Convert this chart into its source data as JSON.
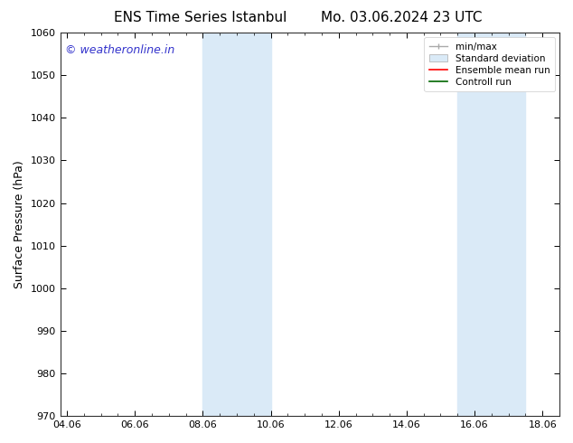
{
  "title_left": "ENS Time Series Istanbul",
  "title_right": "Mo. 03.06.2024 23 UTC",
  "ylabel": "Surface Pressure (hPa)",
  "ylim": [
    970,
    1060
  ],
  "yticks": [
    970,
    980,
    990,
    1000,
    1010,
    1020,
    1030,
    1040,
    1050,
    1060
  ],
  "xtick_labels": [
    "04.06",
    "06.06",
    "08.06",
    "10.06",
    "12.06",
    "14.06",
    "16.06",
    "18.06"
  ],
  "xtick_positions": [
    0,
    2,
    4,
    6,
    8,
    10,
    12,
    14
  ],
  "xlim": [
    -0.2,
    14.2
  ],
  "shaded_bands": [
    {
      "x_start": 4.0,
      "x_end": 6.0,
      "color": "#daeaf7"
    },
    {
      "x_start": 11.5,
      "x_end": 13.5,
      "color": "#daeaf7"
    }
  ],
  "watermark": "© weatheronline.in",
  "watermark_color": "#3333cc",
  "background_color": "#ffffff",
  "legend_items": [
    {
      "label": "min/max",
      "color": "#aaaaaa",
      "type": "line"
    },
    {
      "label": "Standard deviation",
      "color": "#daeaf7",
      "type": "patch"
    },
    {
      "label": "Ensemble mean run",
      "color": "#ff0000",
      "type": "line"
    },
    {
      "label": "Controll run",
      "color": "#006600",
      "type": "line"
    }
  ],
  "title_fontsize": 11,
  "tick_fontsize": 8,
  "ylabel_fontsize": 9,
  "watermark_fontsize": 9,
  "legend_fontsize": 7.5
}
